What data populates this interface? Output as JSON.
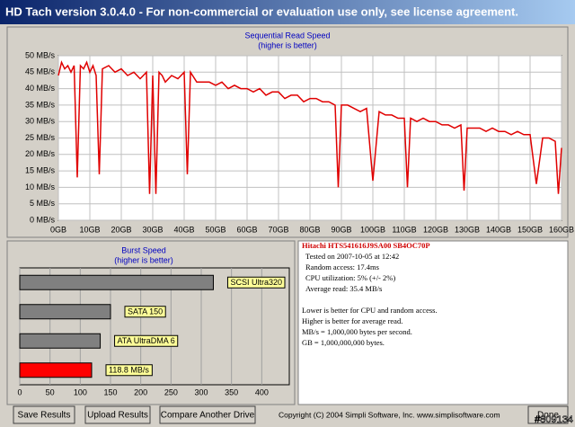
{
  "window": {
    "title": "HD Tach version 3.0.4.0  - For non-commercial or evaluation use only, see license agreement."
  },
  "chart_data": [
    {
      "type": "line",
      "title": "Sequential Read Speed",
      "subtitle": "(higher is better)",
      "color": "#e00000",
      "grid": true,
      "x": [
        0,
        1,
        2,
        3,
        4,
        5,
        6,
        7,
        8,
        9,
        10,
        11,
        12,
        13,
        14,
        16,
        18,
        20,
        22,
        24,
        26,
        28,
        29,
        30,
        31,
        32,
        33,
        34,
        36,
        38,
        40,
        41,
        42,
        44,
        46,
        48,
        50,
        52,
        54,
        56,
        58,
        60,
        62,
        64,
        66,
        68,
        70,
        72,
        74,
        76,
        78,
        80,
        82,
        84,
        86,
        88,
        89,
        90,
        92,
        94,
        96,
        98,
        100,
        102,
        104,
        106,
        108,
        110,
        111,
        112,
        114,
        116,
        118,
        120,
        122,
        124,
        126,
        128,
        129,
        130,
        132,
        134,
        136,
        138,
        140,
        142,
        144,
        146,
        148,
        150,
        152,
        154,
        156,
        158,
        159,
        160
      ],
      "values": [
        44,
        48,
        46,
        47,
        45,
        47,
        13,
        47,
        46,
        48,
        45,
        47,
        44,
        14,
        46,
        47,
        45,
        46,
        44,
        45,
        43,
        45,
        8,
        44,
        8,
        45,
        44,
        42,
        44,
        43,
        45,
        14,
        45,
        42,
        42,
        42,
        41,
        42,
        40,
        41,
        40,
        40,
        39,
        40,
        38,
        39,
        39,
        37,
        38,
        38,
        36,
        37,
        37,
        36,
        36,
        35,
        10,
        35,
        35,
        34,
        33,
        34,
        12,
        33,
        32,
        32,
        31,
        31,
        10,
        31,
        30,
        31,
        30,
        30,
        29,
        29,
        28,
        29,
        9,
        28,
        28,
        28,
        27,
        28,
        27,
        27,
        26,
        27,
        26,
        26,
        11,
        25,
        25,
        24,
        8,
        22
      ],
      "xlim": [
        0,
        160
      ],
      "ylim": [
        0,
        50
      ],
      "xticks": [
        {
          "value": 0,
          "label": "0GB"
        },
        {
          "value": 10,
          "label": "10GB"
        },
        {
          "value": 20,
          "label": "20GB"
        },
        {
          "value": 30,
          "label": "30GB"
        },
        {
          "value": 40,
          "label": "40GB"
        },
        {
          "value": 50,
          "label": "50GB"
        },
        {
          "value": 60,
          "label": "60GB"
        },
        {
          "value": 70,
          "label": "70GB"
        },
        {
          "value": 80,
          "label": "80GB"
        },
        {
          "value": 90,
          "label": "90GB"
        },
        {
          "value": 100,
          "label": "100GB"
        },
        {
          "value": 110,
          "label": "110GB"
        },
        {
          "value": 120,
          "label": "120GB"
        },
        {
          "value": 130,
          "label": "130GB"
        },
        {
          "value": 140,
          "label": "140GB"
        },
        {
          "value": 150,
          "label": "150GB"
        },
        {
          "value": 160,
          "label": "160GB"
        }
      ],
      "yticks": [
        {
          "value": 0,
          "label": "0 MB/s"
        },
        {
          "value": 5,
          "label": "5 MB/s"
        },
        {
          "value": 10,
          "label": "10 MB/s"
        },
        {
          "value": 15,
          "label": "15 MB/s"
        },
        {
          "value": 20,
          "label": "20 MB/s"
        },
        {
          "value": 25,
          "label": "25 MB/s"
        },
        {
          "value": 30,
          "label": "30 MB/s"
        },
        {
          "value": 35,
          "label": "35 MB/s"
        },
        {
          "value": 40,
          "label": "40 MB/s"
        },
        {
          "value": 45,
          "label": "45 MB/s"
        },
        {
          "value": 50,
          "label": "50 MB/s"
        }
      ]
    },
    {
      "type": "hbar",
      "title": "Burst Speed",
      "subtitle": "(higher is better)",
      "grid": true,
      "categories": [
        "SCSI Ultra320",
        "SATA 150",
        "ATA UltraDMA 6",
        null
      ],
      "values": [
        320,
        150,
        133,
        118.8
      ],
      "value_labels": [
        null,
        null,
        null,
        "118.8 MB/s"
      ],
      "colors": [
        "#808080",
        "#808080",
        "#808080",
        "#ff0000"
      ],
      "xlim": [
        0,
        450
      ],
      "xticks": [
        0,
        50,
        100,
        150,
        200,
        250,
        300,
        350,
        400
      ]
    }
  ],
  "drive_info": {
    "model": "Hitachi HTS541616J9SA00 SB4OC70P",
    "lines": [
      "Tested on 2007-10-05 at 12:42",
      "Random access: 17.4ms",
      "CPU utilization: 5% (+/- 2%)",
      "Average read: 35.4 MB/s"
    ],
    "notes": [
      "Lower is better for CPU and random access.",
      "Higher is better for average read.",
      "MB/s = 1,000,000 bytes per second.",
      "GB = 1,000,000,000 bytes."
    ]
  },
  "buttons": [
    "Save Results",
    "Upload Results",
    "Compare Another Drive",
    "Done"
  ],
  "footer": {
    "copyright": "Copyright (C) 2004 Simpli Software, Inc. www.simplisoftware.com",
    "watermark": "#809134"
  }
}
